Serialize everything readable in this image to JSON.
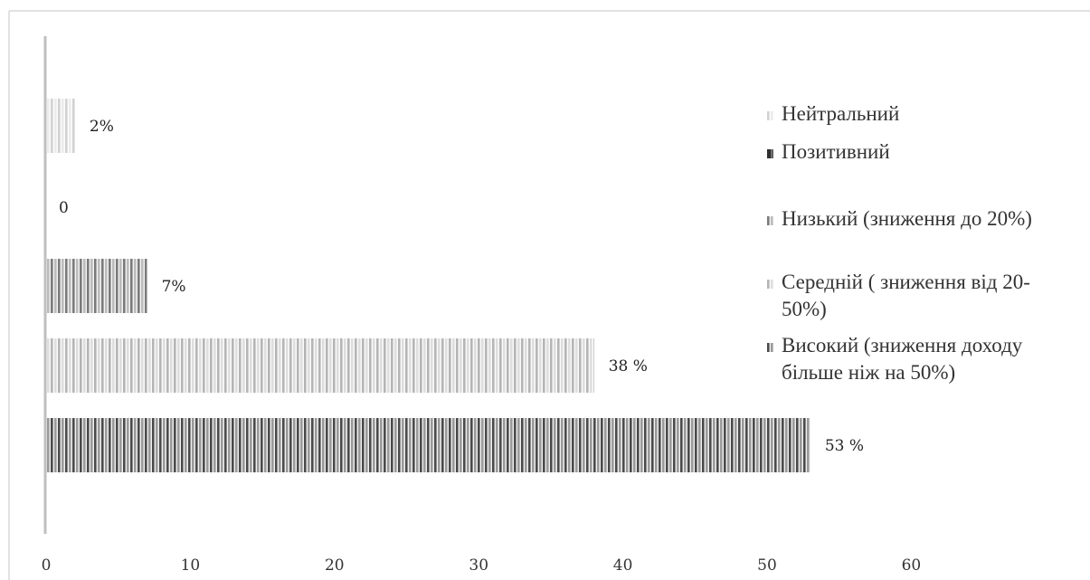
{
  "chart_data": {
    "type": "bar",
    "orientation": "horizontal",
    "title": "",
    "xlabel": "",
    "ylabel": "",
    "xlim": [
      0,
      70
    ],
    "x_ticks": [
      0,
      10,
      20,
      30,
      40,
      50,
      60
    ],
    "grid": false,
    "legend_position": "right",
    "series": [
      {
        "name": "Високий (зниження доходу більше ніж на 50%)",
        "legend_lines": [
          "Високий (зниження доходу",
          "більше ніж на 50%)"
        ],
        "value": 53,
        "data_label": "53 %",
        "fill": "dark-stripes"
      },
      {
        "name": "Середній ( зниження від 20-50%)",
        "legend_lines": [
          "Середній ( зниження від 20-",
          "50%)"
        ],
        "value": 38,
        "data_label": "38 %",
        "fill": "light-stripes"
      },
      {
        "name": "Низький (зниження до 20%)",
        "legend_lines": [
          "Низький (зниження до 20%)"
        ],
        "value": 7,
        "data_label": "7%",
        "fill": "medium-stripes"
      },
      {
        "name": "Позитивний",
        "legend_lines": [
          "Позитивний"
        ],
        "value": 0,
        "data_label": "0",
        "fill": "dark-solid"
      },
      {
        "name": "Нейтральний",
        "legend_lines": [
          "Нейтральний"
        ],
        "value": 2,
        "data_label": "2%",
        "fill": "faint-stripes"
      }
    ]
  }
}
